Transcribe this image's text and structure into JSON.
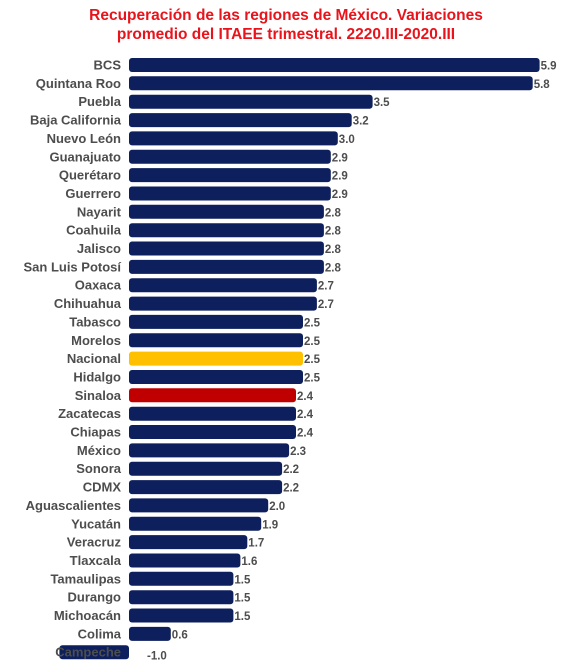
{
  "chart_data": {
    "type": "bar",
    "orientation": "horizontal",
    "title_line1": "Recuperación de las regiones de México. Variaciones",
    "title_line2": "promedio del ITAEE trimestral. 2220.III-2020.III",
    "title_color": "#e8131b",
    "default_color": "#0d1f5c",
    "xlim": [
      -1.0,
      5.9
    ],
    "grid": false,
    "legend": "none",
    "categories": [
      "BCS",
      "Quintana Roo",
      "Puebla",
      "Baja California",
      "Nuevo León",
      "Guanajuato",
      "Querétaro",
      "Guerrero",
      "Nayarit",
      "Coahuila",
      "Jalisco",
      "San Luis Potosí",
      "Oaxaca",
      "Chihuahua",
      "Tabasco",
      "Morelos",
      "Nacional",
      "Hidalgo",
      "Sinaloa",
      "Zacatecas",
      "Chiapas",
      "México",
      "Sonora",
      "CDMX",
      "Aguascalientes",
      "Yucatán",
      "Veracruz",
      "Tlaxcala",
      "Tamaulipas",
      "Durango",
      "Michoacán",
      "Colima",
      "Campeche"
    ],
    "values": [
      5.9,
      5.8,
      3.5,
      3.2,
      3.0,
      2.9,
      2.9,
      2.9,
      2.8,
      2.8,
      2.8,
      2.8,
      2.7,
      2.7,
      2.5,
      2.5,
      2.5,
      2.5,
      2.4,
      2.4,
      2.4,
      2.3,
      2.2,
      2.2,
      2.0,
      1.9,
      1.7,
      1.6,
      1.5,
      1.5,
      1.5,
      0.6,
      -1.0
    ],
    "value_labels": [
      "5.9",
      "5.8",
      "3.5",
      "3.2",
      "3.0",
      "2.9",
      "2.9",
      "2.9",
      "2.8",
      "2.8",
      "2.8",
      "2.8",
      "2.7",
      "2.7",
      "2.5",
      "2.5",
      "2.5",
      "2.5",
      "2.4",
      "2.4",
      "2.4",
      "2.3",
      "2.2",
      "2.2",
      "2.0",
      "1.9",
      "1.7",
      "1.6",
      "1.5",
      "1.5",
      "1.5",
      "0.6",
      "-1.0"
    ],
    "highlights": {
      "Nacional": "#ffc000",
      "Sinaloa": "#c00000"
    }
  }
}
